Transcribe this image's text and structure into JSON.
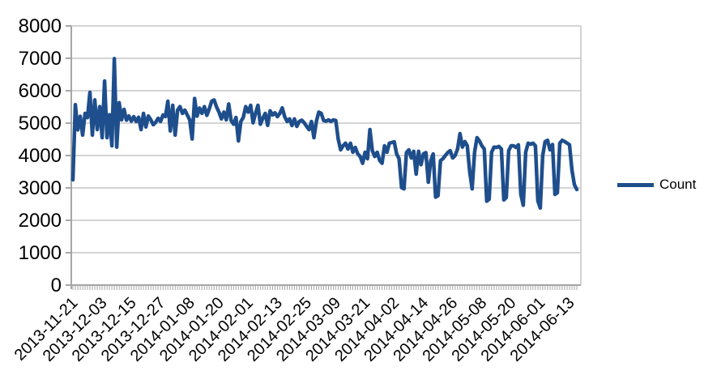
{
  "chart_data": {
    "type": "line",
    "title": "",
    "legend": {
      "position": "right",
      "label": "Count"
    },
    "grid": "horizontal",
    "colors": {
      "series": "#1e4e8c",
      "gridline": "#c6c6c6",
      "axis": "#a6a6a6",
      "text": "#000000",
      "background": "#ffffff"
    },
    "y_axis": {
      "min": 0,
      "max": 8000,
      "tick_step": 1000,
      "tick_labels": [
        "0",
        "1000",
        "2000",
        "3000",
        "4000",
        "5000",
        "6000",
        "7000",
        "8000"
      ]
    },
    "x_axis": {
      "start_date": "2013-11-21",
      "frequency": "daily",
      "tick_label_every": 12,
      "tick_labels": [
        "2013-11-21",
        "2013-12-03",
        "2013-12-15",
        "2013-12-27",
        "2014-01-08",
        "2014-01-20",
        "2014-02-01",
        "2014-02-13",
        "2014-02-25",
        "2014-03-09",
        "2014-03-21",
        "2014-04-02",
        "2014-04-14",
        "2014-04-26",
        "2014-05-08",
        "2014-05-20",
        "2014-06-01",
        "2014-06-13"
      ]
    },
    "series": [
      {
        "name": "Count",
        "values": [
          3250,
          5570,
          4790,
          5210,
          4630,
          5300,
          5170,
          5950,
          4630,
          5715,
          4800,
          5510,
          4550,
          6300,
          4550,
          5260,
          4300,
          6990,
          4260,
          5630,
          5100,
          5425,
          5090,
          5220,
          5060,
          5200,
          5050,
          5180,
          4800,
          5300,
          4880,
          5220,
          5100,
          4950,
          5025,
          5150,
          5050,
          5250,
          5200,
          5675,
          4760,
          5550,
          4630,
          5400,
          5510,
          5300,
          5400,
          5250,
          5100,
          4510,
          5760,
          5215,
          5465,
          5300,
          5510,
          5240,
          5440,
          5675,
          5715,
          5500,
          5340,
          5130,
          5340,
          5100,
          5590,
          5080,
          4965,
          5175,
          4450,
          5050,
          5175,
          5510,
          5340,
          5550,
          5010,
          5300,
          5550,
          4965,
          5150,
          5300,
          4930,
          5380,
          5250,
          5320,
          5200,
          5300,
          5470,
          5200,
          5050,
          5130,
          4925,
          5130,
          4900,
          5050,
          5090,
          5010,
          4900,
          4800,
          5050,
          4550,
          5050,
          5340,
          5300,
          5080,
          5060,
          5100,
          5050,
          5100,
          5080,
          4500,
          4175,
          4300,
          4380,
          4200,
          4380,
          4100,
          4250,
          4050,
          3970,
          3760,
          4100,
          3900,
          4800,
          4150,
          3970,
          4100,
          3850,
          3760,
          4300,
          4100,
          4380,
          4400,
          4425,
          4050,
          3900,
          3010,
          2970,
          4090,
          4175,
          3925,
          4130,
          3425,
          4130,
          3715,
          4050,
          4090,
          3175,
          3840,
          4050,
          2715,
          2760,
          3840,
          3900,
          4000,
          4090,
          4150,
          3925,
          4000,
          4200,
          4675,
          4260,
          4430,
          4300,
          3500,
          2970,
          4100,
          4550,
          4450,
          4300,
          4200,
          2590,
          2650,
          4100,
          4260,
          4250,
          4280,
          4200,
          2630,
          2700,
          4150,
          4300,
          4300,
          4250,
          4330,
          2800,
          2465,
          4100,
          4380,
          4350,
          4380,
          4300,
          2600,
          2380,
          4000,
          4430,
          4470,
          4175,
          4340,
          2800,
          2850,
          4380,
          4470,
          4430,
          4380,
          4330,
          3550,
          3100,
          2950
        ]
      }
    ]
  }
}
